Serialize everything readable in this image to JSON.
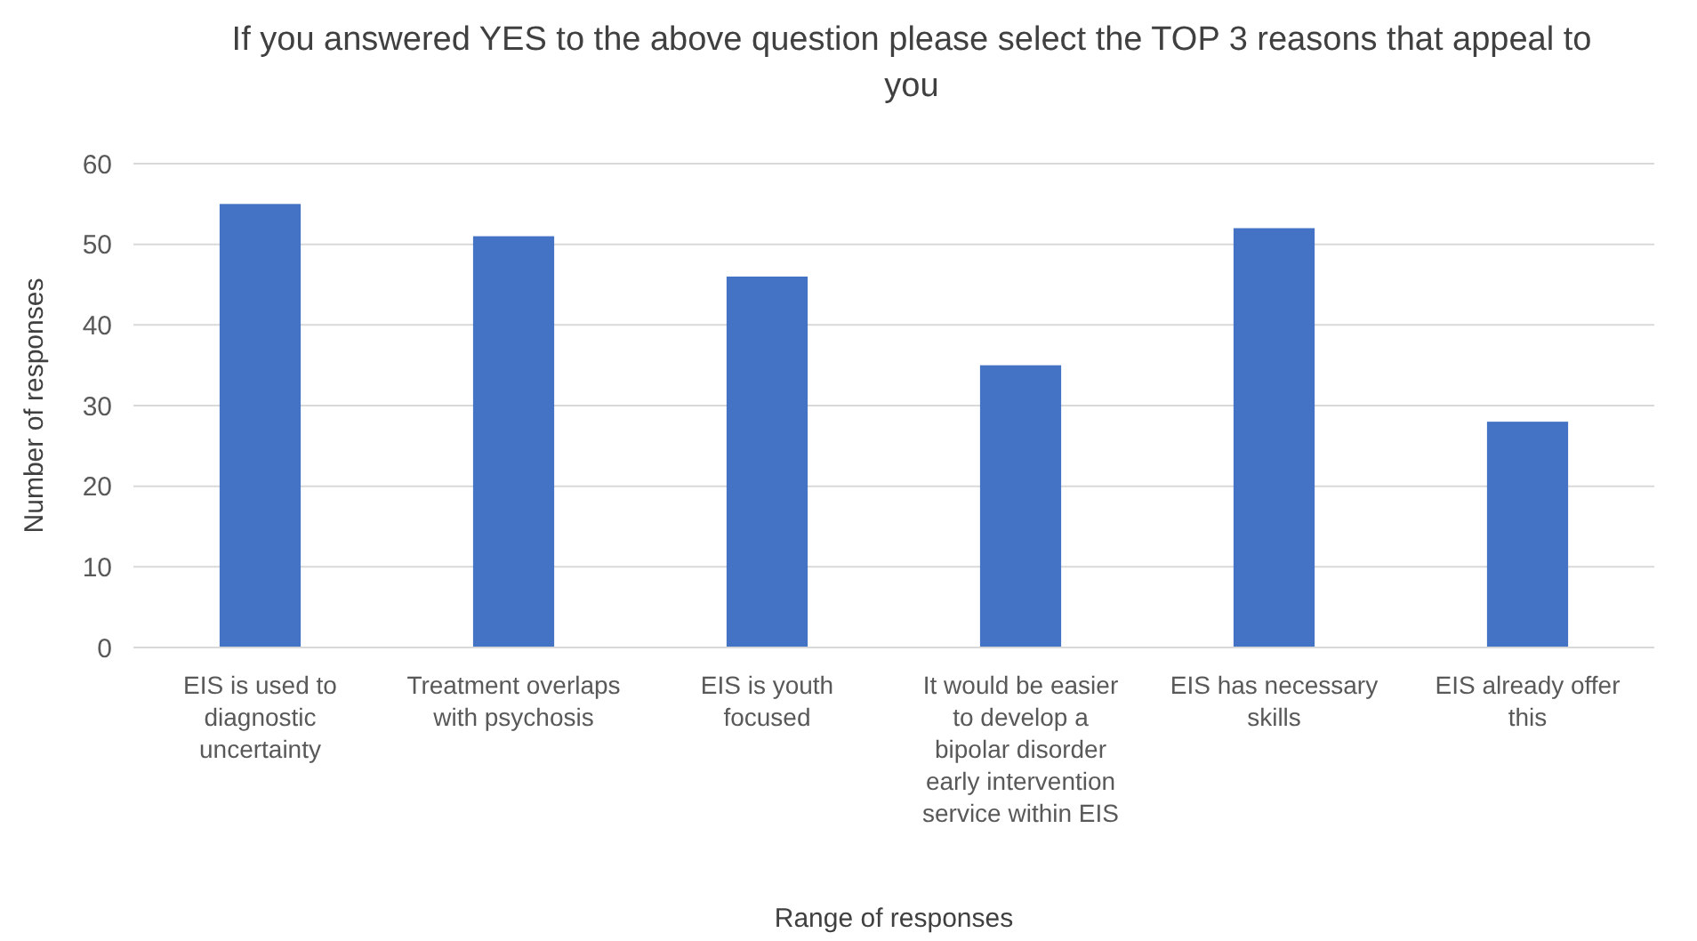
{
  "chart_data": {
    "type": "bar",
    "title": "If you answered YES to the above question please select the TOP 3 reasons that appeal to you",
    "xlabel": "Range of responses",
    "ylabel": "Number of responses",
    "categories": [
      "EIS is used to diagnostic uncertainty",
      "Treatment overlaps with psychosis",
      "EIS is youth focused",
      "It would be easier to develop a bipolar disorder early intervention service within EIS",
      "EIS has necessary skills",
      "EIS already offer this"
    ],
    "values": [
      55,
      51,
      46,
      35,
      52,
      28
    ],
    "color": "#4472c4",
    "ylim": [
      0,
      60
    ],
    "yticks": [
      0,
      10,
      20,
      30,
      40,
      50,
      60
    ],
    "grid": "y"
  }
}
